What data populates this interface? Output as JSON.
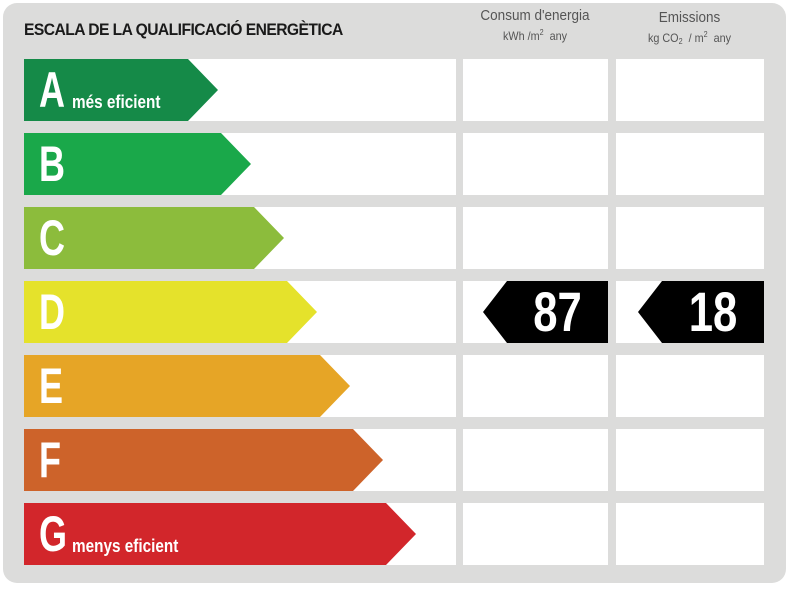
{
  "title": "ESCALA DE LA QUALIFICACIÓ ENERGÈTICA",
  "columns": {
    "consum": {
      "label": "Consum d'energia",
      "unit_prefix": "kWh /m",
      "unit_exp": "2",
      "unit_suffix": "any"
    },
    "emissions": {
      "label": "Emissions",
      "unit_prefix": "kg CO",
      "unit_sub": "2",
      "unit_mid": "/ m",
      "unit_exp": "2",
      "unit_suffix": "any"
    }
  },
  "ratings": [
    {
      "letter": "A",
      "label": "més eficient",
      "color": "#158a48"
    },
    {
      "letter": "B",
      "label": "",
      "color": "#1aa84a"
    },
    {
      "letter": "C",
      "label": "",
      "color": "#8cbc3c"
    },
    {
      "letter": "D",
      "label": "",
      "color": "#e5e22b"
    },
    {
      "letter": "E",
      "label": "",
      "color": "#e6a526"
    },
    {
      "letter": "F",
      "label": "",
      "color": "#cd632a"
    },
    {
      "letter": "G",
      "label": "menys eficient",
      "color": "#d2262b"
    }
  ],
  "result": {
    "rating": "D",
    "consum_value": "87",
    "emissions_value": "18"
  }
}
